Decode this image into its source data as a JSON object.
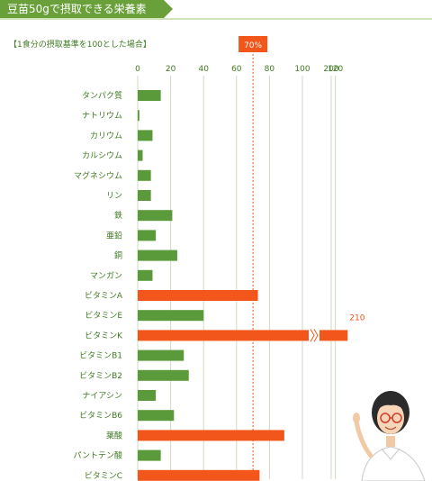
{
  "header": {
    "title": "豆苗50gで摂取できる栄養素"
  },
  "note": "【1食分の摂取基準を100とした場合】",
  "colors": {
    "normal": "#5a9a3a",
    "highlight": "#f2561a",
    "header": "#6aa03a",
    "grid": "#cfdcc0",
    "text": "#3f7a22"
  },
  "chart_data": {
    "type": "bar",
    "orientation": "horizontal",
    "title": "",
    "xlabel": "",
    "ylabel": "",
    "ticks": [
      0,
      20,
      40,
      60,
      80,
      100,
      120,
      200
    ],
    "axis_break": "between 120 and 200",
    "reference": {
      "value": 70,
      "label": "70%"
    },
    "categories": [
      "タンパク質",
      "ナトリウム",
      "カリウム",
      "カルシウム",
      "マグネシウム",
      "リン",
      "鉄",
      "亜鉛",
      "銅",
      "マンガン",
      "ビタミンA",
      "ビタミンE",
      "ビタミンK",
      "ビタミンB1",
      "ビタミンB2",
      "ナイアシン",
      "ビタミンB6",
      "葉酸",
      "パントテン酸",
      "ビタミンC"
    ],
    "values": [
      14,
      1,
      9,
      3,
      8,
      8,
      21,
      11,
      24,
      9,
      73,
      40,
      210,
      28,
      31,
      11,
      22,
      89,
      14,
      74
    ],
    "highlighted": [
      false,
      false,
      false,
      false,
      false,
      false,
      false,
      false,
      false,
      false,
      true,
      false,
      true,
      false,
      false,
      false,
      false,
      true,
      false,
      true
    ],
    "data_labels": [
      {
        "category": "ビタミンK",
        "text": "210"
      }
    ],
    "grid": true,
    "legend": "none"
  }
}
